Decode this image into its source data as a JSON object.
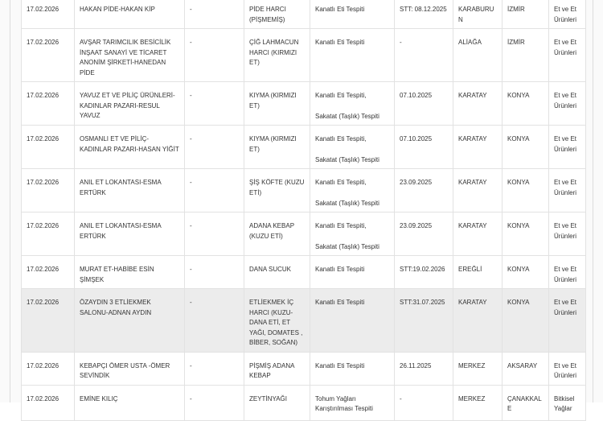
{
  "rows": [
    {
      "date": "17.02.2026",
      "firm": "HAKAN PİDE-HAKAN KİP",
      "brand": "-",
      "product": "PİDE HARCI (PİŞMEMİŞ)",
      "violation": [
        "Kanatlı Eti Tespiti"
      ],
      "batch": "STT: 08.12.2025",
      "district": "KARABURUN",
      "province": "İZMİR",
      "group": "Et ve Et Ürünleri",
      "shaded": false
    },
    {
      "date": "17.02.2026",
      "firm": "AVŞAR TARIMCILIK BESİCİLİK İNŞAAT SANAYİ VE TİCARET ANONİM ŞİRKETİ-HANEDAN PİDE",
      "brand": "-",
      "product": "ÇİĞ LAHMACUN HARCI (KIRMIZI ET)",
      "violation": [
        "Kanatlı Eti Tespiti"
      ],
      "batch": "-",
      "district": "ALİAĞA",
      "province": "İZMİR",
      "group": "Et ve Et Ürünleri",
      "shaded": false
    },
    {
      "date": "17.02.2026",
      "firm": "YAVUZ ET VE PİLİÇ ÜRÜNLERİ-KADINLAR PAZARI-RESUL YAVUZ",
      "brand": "-",
      "product": "KIYMA (KIRMIZI ET)",
      "violation": [
        "Kanatlı Eti Tespiti,",
        "Sakatat (Taşlık) Tespiti"
      ],
      "batch": "07.10.2025",
      "district": "KARATAY",
      "province": "KONYA",
      "group": "Et ve Et Ürünleri",
      "shaded": false
    },
    {
      "date": "17.02.2026",
      "firm": "OSMANLI ET VE PİLİÇ-KADINLAR PAZARI-HASAN YİĞİT",
      "brand": "-",
      "product": "KIYMA (KIRMIZI ET)",
      "violation": [
        "Kanatlı Eti Tespiti,",
        "Sakatat (Taşlık) Tespiti"
      ],
      "batch": "07.10.2025",
      "district": "KARATAY",
      "province": "KONYA",
      "group": "Et ve Et Ürünleri",
      "shaded": false
    },
    {
      "date": "17.02.2026",
      "firm": "ANIL ET LOKANTASI-ESMA ERTÜRK",
      "brand": "-",
      "product": "ŞİŞ KÖFTE (KUZU ETİ)",
      "violation": [
        "Kanatlı Eti Tespiti,",
        "Sakatat (Taşlık) Tespiti"
      ],
      "batch": "23.09.2025",
      "district": "KARATAY",
      "province": "KONYA",
      "group": "Et ve Et Ürünleri",
      "shaded": false
    },
    {
      "date": "17.02.2026",
      "firm": "ANIL ET LOKANTASI-ESMA ERTÜRK",
      "brand": "-",
      "product": "ADANA KEBAP (KUZU ETİ)",
      "violation": [
        "Kanatlı Eti Tespiti,",
        "Sakatat (Taşlık) Tespiti"
      ],
      "batch": "23.09.2025",
      "district": "KARATAY",
      "province": "KONYA",
      "group": "Et ve Et Ürünleri",
      "shaded": false
    },
    {
      "date": "17.02.2026",
      "firm": "MURAT ET-HABİBE ESİN ŞİMŞEK",
      "brand": "-",
      "product": "DANA SUCUK",
      "violation": [
        "Kanatlı Eti Tespiti"
      ],
      "batch": "STT:19.02.2026",
      "district": "EREĞLİ",
      "province": "KONYA",
      "group": "Et ve Et Ürünleri",
      "shaded": false
    },
    {
      "date": "17.02.2026",
      "firm": "ÖZAYDIN 3 ETLİEKMEK SALONU-ADNAN AYDIN",
      "brand": "-",
      "product": "ETLİEKMEK İÇ HARCI (KUZU-DANA ETİ, ET YAĞI, DOMATES , BİBER, SOĞAN)",
      "violation": [
        "Kanatlı Eti Tespiti"
      ],
      "batch": "STT:31.07.2025",
      "district": "KARATAY",
      "province": "KONYA",
      "group": "Et ve Et Ürünleri",
      "shaded": true
    },
    {
      "date": "17.02.2026",
      "firm": "KEBAPÇI ÖMER USTA -ÖMER SEVİNDİK",
      "brand": "-",
      "product": "PİŞMİŞ ADANA KEBAP",
      "violation": [
        "Kanatlı Eti Tespiti"
      ],
      "batch": "26.11.2025",
      "district": "MERKEZ",
      "province": "AKSARAY",
      "group": "Et ve Et Ürünleri",
      "shaded": false
    },
    {
      "date": "17.02.2026",
      "firm": "EMİNE KILIÇ",
      "brand": "-",
      "product": "ZEYTİNYAĞI",
      "violation": [
        "Tohum Yağları Karıştırılması Tespiti"
      ],
      "batch": "-",
      "district": "MERKEZ",
      "province": "ÇANAKKALE",
      "group": "Bitkisel Yağlar",
      "shaded": false
    }
  ]
}
